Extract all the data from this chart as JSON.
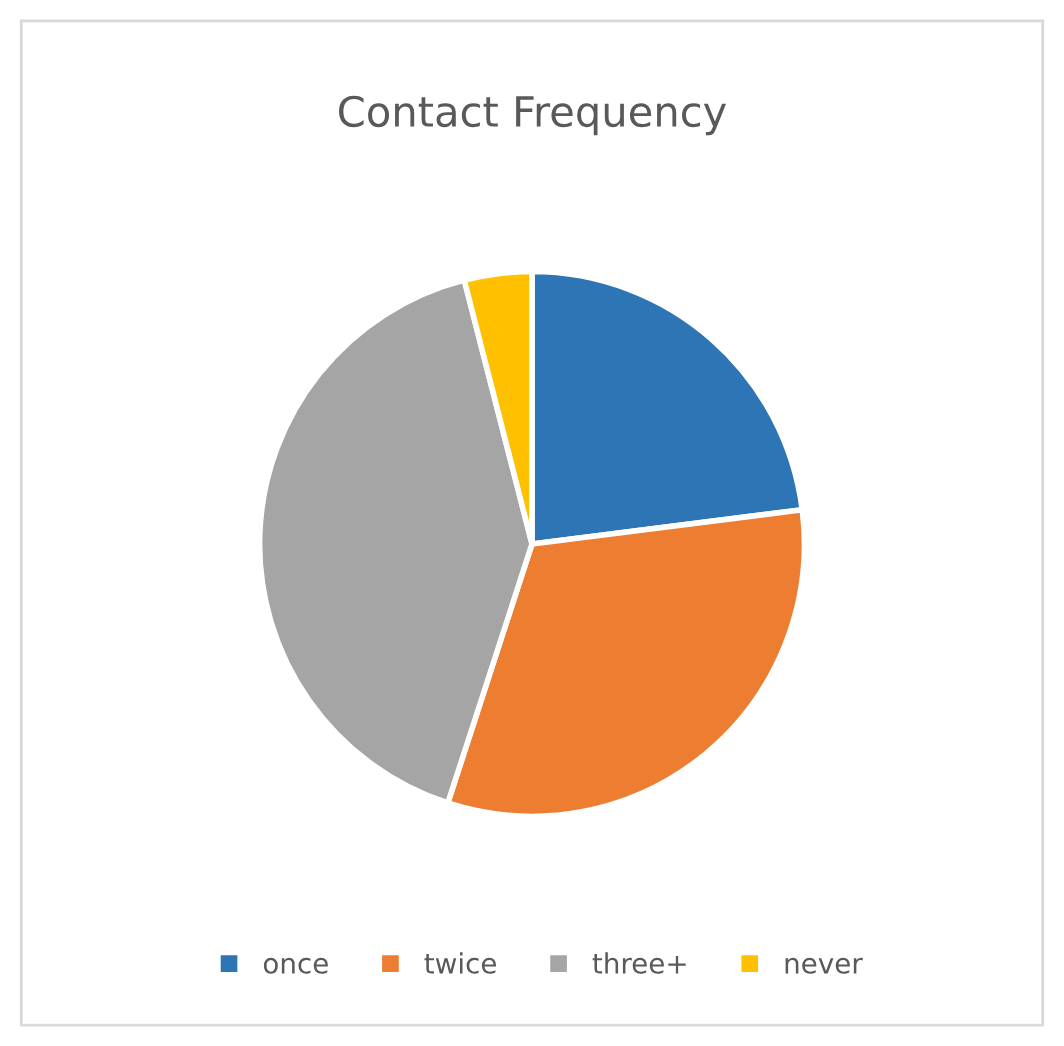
{
  "chart_data": {
    "type": "pie",
    "title": "Contact Frequency",
    "categories": [
      "once",
      "twice",
      "three+",
      "never"
    ],
    "values": [
      23,
      32,
      41,
      4
    ],
    "colors": [
      "#2e75b6",
      "#ed7d31",
      "#a5a5a5",
      "#ffc000"
    ],
    "legend": "bottom"
  }
}
